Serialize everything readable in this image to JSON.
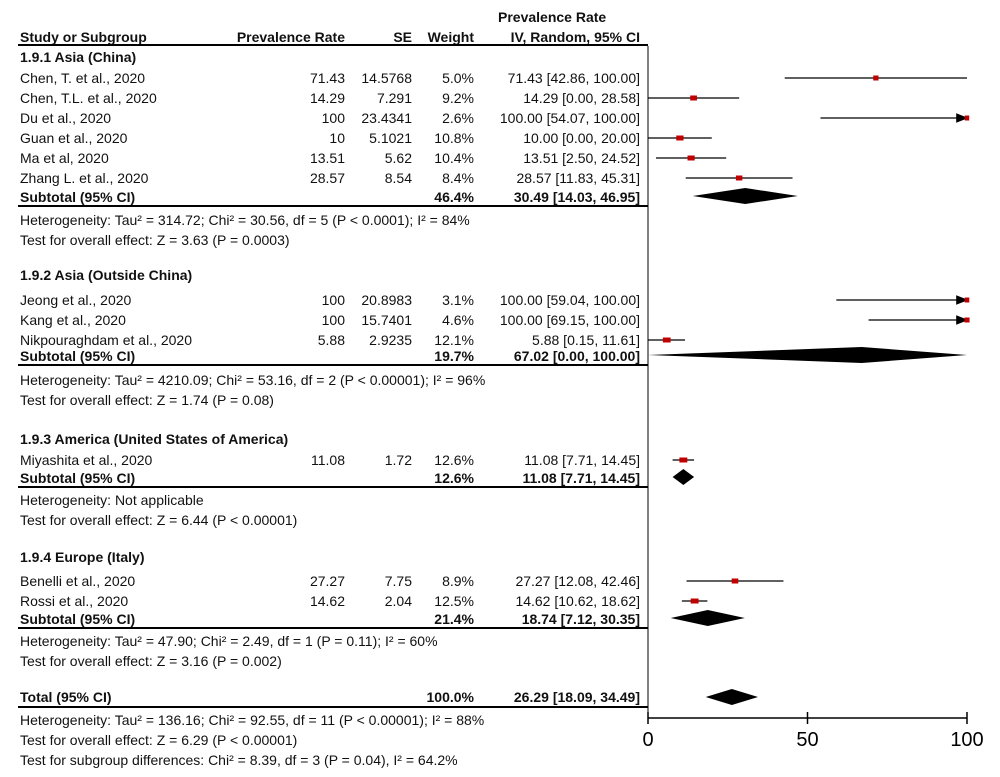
{
  "header": {
    "study": "Study or Subgroup",
    "rate": "Prevalence Rate",
    "se": "SE",
    "weight": "Weight",
    "ci_top": "Prevalence Rate",
    "ci_bottom": "IV, Random, 95% CI"
  },
  "groups": [
    {
      "title": "1.9.1 Asia (China)",
      "rows": [
        {
          "study": "Chen, T. et al., 2020",
          "rate": "71.43",
          "se": "14.5768",
          "weight": "5.0%",
          "ci": "71.43 [42.86, 100.00]"
        },
        {
          "study": "Chen, T.L. et al., 2020",
          "rate": "14.29",
          "se": "7.291",
          "weight": "9.2%",
          "ci": "14.29  [0.00, 28.58]"
        },
        {
          "study": "Du et al., 2020",
          "rate": "100",
          "se": "23.4341",
          "weight": "2.6%",
          "ci": "100.00 [54.07, 100.00]"
        },
        {
          "study": "Guan et al., 2020",
          "rate": "10",
          "se": "5.1021",
          "weight": "10.8%",
          "ci": "10.00 [0.00, 20.00]"
        },
        {
          "study": "Ma et al, 2020",
          "rate": "13.51",
          "se": "5.62",
          "weight": "10.4%",
          "ci": "13.51  [2.50, 24.52]"
        },
        {
          "study": "Zhang L. et al., 2020",
          "rate": "28.57",
          "se": "8.54",
          "weight": "8.4%",
          "ci": "28.57 [11.83, 45.31]"
        }
      ],
      "subtotal": {
        "label": "Subtotal (95% CI)",
        "weight": "46.4%",
        "ci": "30.49 [14.03, 46.95]"
      },
      "heterogeneity": "Heterogeneity: Tau² = 314.72; Chi² = 30.56, df = 5 (P < 0.0001); I² = 84%",
      "overall": "Test for overall effect: Z = 3.63 (P = 0.0003)"
    },
    {
      "title": "1.9.2 Asia (Outside China)",
      "rows": [
        {
          "study": "Jeong et al., 2020",
          "rate": "100",
          "se": "20.8983",
          "weight": "3.1%",
          "ci": "100.00 [59.04, 100.00]"
        },
        {
          "study": "Kang et al., 2020",
          "rate": "100",
          "se": "15.7401",
          "weight": "4.6%",
          "ci": "100.00 [69.15, 100.00]"
        },
        {
          "study": "Nikpouraghdam et al., 2020",
          "rate": "5.88",
          "se": "2.9235",
          "weight": "12.1%",
          "ci": "5.88 [0.15, 11.61]"
        }
      ],
      "subtotal": {
        "label": "Subtotal (95% CI)",
        "weight": "19.7%",
        "ci": "67.02  [0.00, 100.00]"
      },
      "heterogeneity": "Heterogeneity: Tau² = 4210.09; Chi² = 53.16, df = 2 (P < 0.00001); I² = 96%",
      "overall": "Test for overall effect: Z = 1.74 (P = 0.08)"
    },
    {
      "title": "1.9.3 America (United States of America)",
      "rows": [
        {
          "study": "Miyashita et al., 2020",
          "rate": "11.08",
          "se": "1.72",
          "weight": "12.6%",
          "ci": "11.08 [7.71, 14.45]"
        }
      ],
      "subtotal": {
        "label": "Subtotal (95% CI)",
        "weight": "12.6%",
        "ci": "11.08 [7.71, 14.45]"
      },
      "heterogeneity": "Heterogeneity: Not applicable",
      "overall": "Test for overall effect: Z = 6.44 (P < 0.00001)"
    },
    {
      "title": "1.9.4 Europe (Italy)",
      "rows": [
        {
          "study": "Benelli et al., 2020",
          "rate": "27.27",
          "se": "7.75",
          "weight": "8.9%",
          "ci": "27.27 [12.08, 42.46]"
        },
        {
          "study": "Rossi et al., 2020",
          "rate": "14.62",
          "se": "2.04",
          "weight": "12.5%",
          "ci": "14.62 [10.62, 18.62]"
        }
      ],
      "subtotal": {
        "label": "Subtotal (95% CI)",
        "weight": "21.4%",
        "ci": "18.74 [7.12, 30.35]"
      },
      "heterogeneity": "Heterogeneity: Tau² = 47.90; Chi² = 2.49, df = 1 (P = 0.11); I² = 60%",
      "overall": "Test for overall effect: Z = 3.16 (P = 0.002)"
    }
  ],
  "total": {
    "label": "Total (95% CI)",
    "weight": "100.0%",
    "ci": "26.29 [18.09, 34.49]",
    "heterogeneity": "Heterogeneity: Tau² = 136.16; Chi² = 92.55, df = 11 (P < 0.00001); I² = 88%",
    "overall": "Test for overall effect: Z = 6.29 (P < 0.00001)",
    "subgroup": "Test for subgroup differences: Chi² = 8.39, df = 3 (P = 0.04), I² = 64.2%"
  },
  "colors": {
    "marker": "#c00000",
    "line": "#000000",
    "diamond": "#000000"
  },
  "chart_data": {
    "type": "forest",
    "xlim": [
      0,
      100
    ],
    "xticks": [
      "0",
      "50",
      "100"
    ],
    "studies": [
      {
        "name": "Chen, T. et al., 2020",
        "est": 71.43,
        "lo": 42.86,
        "hi": 100.0,
        "weight": 5.0,
        "group": 0
      },
      {
        "name": "Chen, T.L. et al., 2020",
        "est": 14.29,
        "lo": 0.0,
        "hi": 28.58,
        "weight": 9.2,
        "group": 0
      },
      {
        "name": "Du et al., 2020",
        "est": 100.0,
        "lo": 54.07,
        "hi": 100.0,
        "weight": 2.6,
        "group": 0
      },
      {
        "name": "Guan et al., 2020",
        "est": 10.0,
        "lo": 0.0,
        "hi": 20.0,
        "weight": 10.8,
        "group": 0
      },
      {
        "name": "Ma et al, 2020",
        "est": 13.51,
        "lo": 2.5,
        "hi": 24.52,
        "weight": 10.4,
        "group": 0
      },
      {
        "name": "Zhang L. et al., 2020",
        "est": 28.57,
        "lo": 11.83,
        "hi": 45.31,
        "weight": 8.4,
        "group": 0
      },
      {
        "name": "Jeong et al., 2020",
        "est": 100.0,
        "lo": 59.04,
        "hi": 100.0,
        "weight": 3.1,
        "group": 1
      },
      {
        "name": "Kang et al., 2020",
        "est": 100.0,
        "lo": 69.15,
        "hi": 100.0,
        "weight": 4.6,
        "group": 1
      },
      {
        "name": "Nikpouraghdam et al., 2020",
        "est": 5.88,
        "lo": 0.15,
        "hi": 11.61,
        "weight": 12.1,
        "group": 1
      },
      {
        "name": "Miyashita et al., 2020",
        "est": 11.08,
        "lo": 7.71,
        "hi": 14.45,
        "weight": 12.6,
        "group": 2
      },
      {
        "name": "Benelli et al., 2020",
        "est": 27.27,
        "lo": 12.08,
        "hi": 42.46,
        "weight": 8.9,
        "group": 3
      },
      {
        "name": "Rossi et al., 2020",
        "est": 14.62,
        "lo": 10.62,
        "hi": 18.62,
        "weight": 12.5,
        "group": 3
      }
    ],
    "subtotals": [
      {
        "group": 0,
        "est": 30.49,
        "lo": 14.03,
        "hi": 46.95
      },
      {
        "group": 1,
        "est": 67.02,
        "lo": 0.0,
        "hi": 100.0
      },
      {
        "group": 2,
        "est": 11.08,
        "lo": 7.71,
        "hi": 14.45
      },
      {
        "group": 3,
        "est": 18.74,
        "lo": 7.12,
        "hi": 30.35
      }
    ],
    "overall": {
      "est": 26.29,
      "lo": 18.09,
      "hi": 34.49
    }
  }
}
